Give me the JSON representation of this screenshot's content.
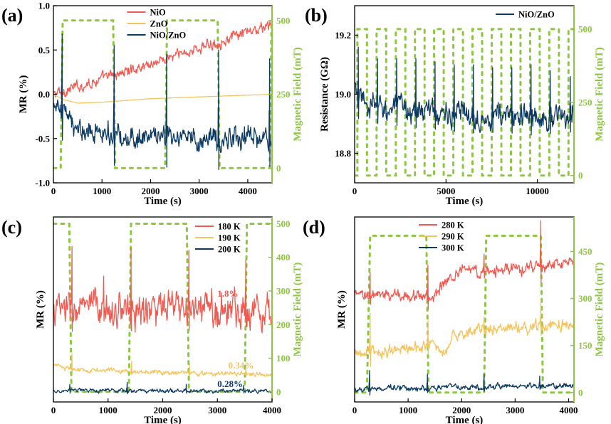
{
  "colors": {
    "nio": "#f15a50",
    "zno": "#f5c45e",
    "niozno": "#0c3a63",
    "field": "#8dc63f",
    "red": "#f15a50",
    "yellow": "#f5c45e",
    "blue": "#0c3a63",
    "axis": "#000000"
  },
  "chart_data": [
    {
      "id": "a",
      "panel_label": "(a)",
      "type": "line",
      "xlabel": "Time (s)",
      "ylabel": "MR (%)",
      "y2label": "Magnetic Field (mT)",
      "xlim": [
        0,
        4500
      ],
      "ylim": [
        -1.0,
        1.0
      ],
      "y2lim": [
        -50,
        550
      ],
      "xticks": [
        0,
        1000,
        2000,
        3000,
        4000
      ],
      "yticks": [
        -1.0,
        -0.5,
        0.0,
        0.5,
        1.0
      ],
      "ytick_labels": [
        "-1.0",
        "-0.5",
        "0.0",
        "0.5",
        "1.0"
      ],
      "y2ticks": [
        0,
        250,
        500
      ],
      "y2tick_labels": [
        "0",
        "250",
        "500"
      ],
      "legend": "top-center",
      "series": [
        {
          "name": "NiO",
          "color": "nio",
          "gen": "drift",
          "x": [
            0,
            4500
          ],
          "y": [
            0.0,
            0.78
          ],
          "noise": 0.06,
          "spikes": []
        },
        {
          "name": "ZnO",
          "color": "zno",
          "gen": "path",
          "x": [
            0,
            200,
            500,
            1000,
            2000,
            3000,
            4000,
            4500
          ],
          "y": [
            0,
            -0.06,
            -0.1,
            -0.09,
            -0.05,
            -0.03,
            -0.01,
            0.0
          ]
        },
        {
          "name": "NiO/ZnO",
          "color": "niozno",
          "gen": "drift",
          "x": [
            0,
            250,
            450,
            1200,
            2500,
            4500
          ],
          "y": [
            -0.1,
            -0.25,
            -0.4,
            -0.45,
            -0.5,
            -0.5
          ],
          "noise": 0.12,
          "spikes": [
            [
              180,
              0.68
            ],
            [
              1250,
              0.55
            ],
            [
              2330,
              0.45
            ],
            [
              3400,
              0.5
            ],
            [
              4450,
              0.4
            ]
          ]
        }
      ],
      "field": {
        "name": "Magnetic Field",
        "color": "field",
        "x": [
          0,
          150,
          170,
          190,
          1230,
          1250,
          1270,
          2300,
          2320,
          2340,
          3380,
          3400,
          3420,
          4450,
          4470,
          4490,
          4500
        ],
        "y": [
          0,
          0,
          250,
          500,
          500,
          250,
          0,
          0,
          250,
          500,
          500,
          250,
          0,
          0,
          250,
          500,
          500
        ]
      }
    },
    {
      "id": "b",
      "panel_label": "(b)",
      "type": "line",
      "xlabel": "Time (s)",
      "ylabel": "Resistance (GΩ)",
      "y2label": "Magnetic Field (mT)",
      "xlim": [
        0,
        12000
      ],
      "ylim": [
        18.7,
        19.3
      ],
      "y2lim": [
        -25,
        580
      ],
      "xticks": [
        0,
        5000,
        10000
      ],
      "yticks": [
        18.8,
        19.0,
        19.2
      ],
      "ytick_labels": [
        "18.8",
        "19.0",
        "19.2"
      ],
      "y2ticks": [
        0,
        250,
        500
      ],
      "y2tick_labels": [
        "0",
        "250",
        "500"
      ],
      "legend": "top-right",
      "series": [
        {
          "name": "NiO/ZnO",
          "color": "niozno",
          "gen": "drift",
          "x": [
            0,
            200,
            800,
            3000,
            6000,
            12000
          ],
          "y": [
            19.02,
            18.98,
            18.96,
            18.95,
            18.93,
            18.92
          ],
          "noise": 0.04,
          "spikes": [
            [
              200,
              19.16
            ],
            [
              1250,
              19.12
            ],
            [
              2300,
              19.12
            ],
            [
              3350,
              19.12
            ],
            [
              4400,
              19.11
            ],
            [
              5450,
              19.1
            ],
            [
              6500,
              19.1
            ],
            [
              7550,
              19.09
            ],
            [
              8600,
              19.09
            ],
            [
              9650,
              19.1
            ],
            [
              10700,
              19.08
            ],
            [
              11800,
              19.06
            ]
          ]
        }
      ],
      "field": {
        "name": "Magnetic Field",
        "color": "field",
        "period": 1050,
        "start": 150,
        "hi": 500,
        "lo": 0
      }
    },
    {
      "id": "c",
      "panel_label": "(c)",
      "type": "line",
      "xlabel": "Time (s)",
      "ylabel": "MR (%)",
      "y2label": "Magnetic Field (mT)",
      "xlim": [
        0,
        4000
      ],
      "ylim": [
        0,
        10
      ],
      "y2lim": [
        -30,
        520
      ],
      "xticks": [
        0,
        1000,
        2000,
        3000,
        4000
      ],
      "yticks": [],
      "ytick_labels": [],
      "y2ticks": [
        0,
        100,
        200,
        300,
        400,
        500
      ],
      "y2tick_labels": [
        "0",
        "100",
        "200",
        "300",
        "400",
        "500"
      ],
      "legend": "top-right",
      "series": [
        {
          "name": "180 K",
          "color": "red",
          "gen": "drift",
          "x": [
            0,
            4000
          ],
          "y": [
            5.0,
            5.0
          ],
          "noise": 0.9,
          "spikes": [
            [
              340,
              8.4
            ],
            [
              920,
              6.8
            ],
            [
              1420,
              8.3
            ],
            [
              2480,
              8.2
            ],
            [
              3520,
              7.7
            ]
          ]
        },
        {
          "name": "190 K",
          "color": "yellow",
          "gen": "drift",
          "x": [
            0,
            400,
            4000
          ],
          "y": [
            2.0,
            1.75,
            1.45
          ],
          "noise": 0.12,
          "spikes": [
            [
              340,
              2.6
            ],
            [
              1430,
              2.2
            ],
            [
              2490,
              2.0
            ],
            [
              3520,
              1.8
            ]
          ]
        },
        {
          "name": "200 K",
          "color": "blue",
          "gen": "drift",
          "x": [
            0,
            4000
          ],
          "y": [
            0.6,
            0.6
          ],
          "noise": 0.1,
          "spikes": [
            [
              300,
              0.95
            ],
            [
              1350,
              1.05
            ],
            [
              2430,
              0.95
            ],
            [
              3480,
              0.9
            ]
          ]
        }
      ],
      "annotations": [
        {
          "text": "1.8%",
          "x": 3000,
          "y": 5.7,
          "color": "red"
        },
        {
          "text": "0.34%",
          "x": 3200,
          "y": 1.8,
          "color": "yellow"
        },
        {
          "text": "0.28%",
          "x": 3000,
          "y": 0.8,
          "color": "blue"
        }
      ],
      "field": {
        "name": "Magnetic Field",
        "color": "field",
        "x": [
          0,
          290,
          310,
          330,
          1380,
          1400,
          1420,
          2440,
          2460,
          2480,
          3500,
          3520,
          3540,
          4000
        ],
        "y": [
          500,
          500,
          250,
          0,
          0,
          250,
          500,
          500,
          250,
          0,
          0,
          250,
          500,
          500
        ]
      }
    },
    {
      "id": "d",
      "panel_label": "(d)",
      "type": "line",
      "xlabel": "Time (s)",
      "ylabel": "MR (%)",
      "y2label": "Magnetic Field (mT)",
      "xlim": [
        0,
        4100
      ],
      "ylim": [
        0,
        10
      ],
      "y2lim": [
        -30,
        560
      ],
      "xticks": [
        0,
        1000,
        2000,
        3000,
        4000
      ],
      "yticks": [],
      "ytick_labels": [],
      "y2ticks": [
        0,
        150,
        300,
        450
      ],
      "y2tick_labels": [
        "0",
        "150",
        "300",
        "450"
      ],
      "legend": "top-center",
      "series": [
        {
          "name": "280 K",
          "color": "red",
          "gen": "drift",
          "x": [
            0,
            1200,
            1400,
            1700,
            2000,
            2300,
            4100
          ],
          "y": [
            5.7,
            5.8,
            5.6,
            6.4,
            7.3,
            7.0,
            7.5
          ],
          "noise": 0.3,
          "spikes": [
            [
              290,
              7.0
            ],
            [
              1370,
              7.4
            ],
            [
              2420,
              8.0
            ],
            [
              3480,
              9.8
            ]
          ]
        },
        {
          "name": "290 K",
          "color": "yellow",
          "gen": "drift",
          "x": [
            0,
            1300,
            1500,
            1700,
            1800,
            2300,
            4100
          ],
          "y": [
            2.6,
            2.9,
            3.3,
            2.3,
            3.5,
            3.9,
            4.2
          ],
          "noise": 0.3,
          "spikes": [
            [
              290,
              4.8
            ],
            [
              1370,
              4.4
            ],
            [
              2420,
              4.6
            ],
            [
              3480,
              5.5
            ]
          ]
        },
        {
          "name": "300 K",
          "color": "blue",
          "gen": "drift",
          "x": [
            0,
            4100
          ],
          "y": [
            0.7,
            0.9
          ],
          "noise": 0.15,
          "spikes": [
            [
              280,
              1.7
            ],
            [
              1360,
              1.5
            ],
            [
              2420,
              1.5
            ],
            [
              3460,
              1.4
            ]
          ]
        }
      ],
      "field": {
        "name": "Magnetic Field",
        "color": "field",
        "x": [
          0,
          230,
          260,
          290,
          1340,
          1360,
          1380,
          2420,
          2440,
          2460,
          3480,
          3500,
          3520,
          4100
        ],
        "y": [
          0,
          0,
          250,
          500,
          500,
          250,
          0,
          0,
          250,
          500,
          500,
          250,
          0,
          0
        ]
      }
    }
  ]
}
